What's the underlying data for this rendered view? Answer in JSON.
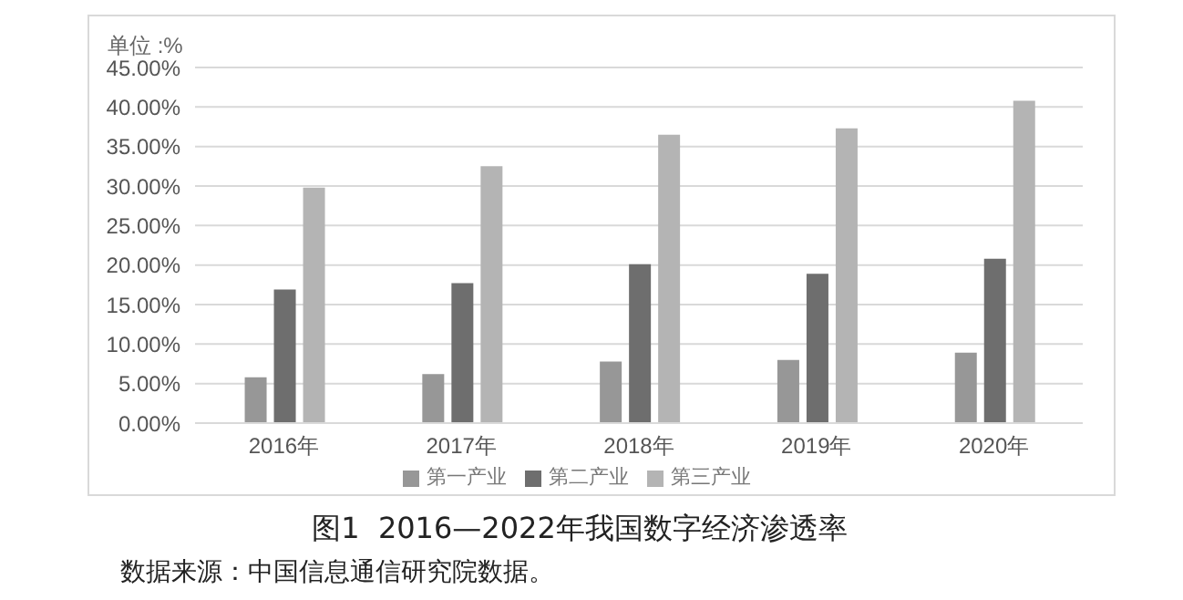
{
  "chart_data": {
    "type": "bar",
    "title": "图1  2016—2022年我国数字经济渗透率",
    "ylabel": "单位 :%",
    "annotations": [
      "数据来源：中国信息通信研究院数据。"
    ],
    "categories": [
      "2016年",
      "2017年",
      "2018年",
      "2019年",
      "2020年"
    ],
    "series": [
      {
        "name": "第一产业",
        "color": "#979797",
        "values": [
          5.8,
          6.2,
          7.8,
          8.0,
          8.9
        ]
      },
      {
        "name": "第二产业",
        "color": "#6e6e6e",
        "values": [
          16.9,
          17.7,
          20.1,
          18.9,
          20.8
        ]
      },
      {
        "name": "第三产业",
        "color": "#b4b4b4",
        "values": [
          29.8,
          32.5,
          36.5,
          37.3,
          40.8
        ]
      }
    ],
    "ylim": [
      0,
      45
    ],
    "yticks": [
      {
        "value": 0,
        "label": "0.00%"
      },
      {
        "value": 5,
        "label": "5.00%"
      },
      {
        "value": 10,
        "label": "10.00%"
      },
      {
        "value": 15,
        "label": "15.00%"
      },
      {
        "value": 20,
        "label": "20.00%"
      },
      {
        "value": 25,
        "label": "25.00%"
      },
      {
        "value": 30,
        "label": "30.00%"
      },
      {
        "value": 35,
        "label": "35.00%"
      },
      {
        "value": 40,
        "label": "40.00%"
      },
      {
        "value": 45,
        "label": "45.00%"
      }
    ],
    "grid": "y",
    "legend": "bottom"
  }
}
